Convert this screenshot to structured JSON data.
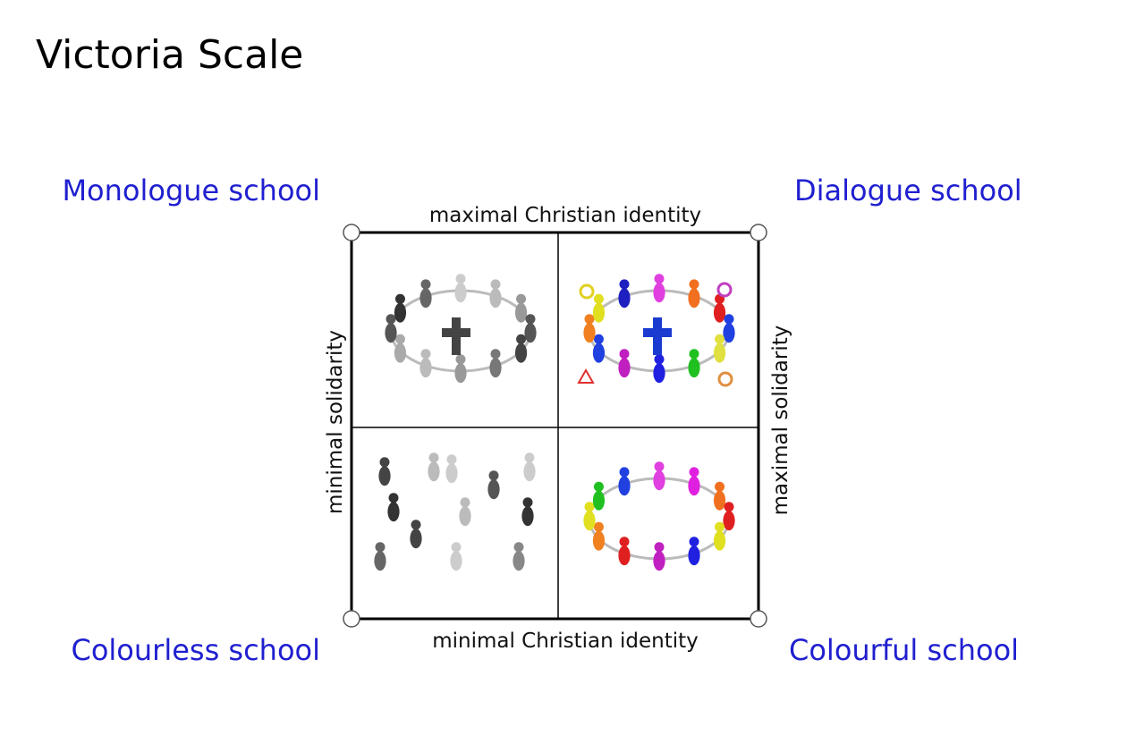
{
  "title": "Victoria Scale",
  "quadrants": {
    "top_left": "Monologue school",
    "top_right": "Dialogue school",
    "bottom_left": "Colourless school",
    "bottom_right": "Colourful school"
  },
  "axes": {
    "top": "maximal Christian identity",
    "bottom": "minimal Christian identity",
    "left": "minimal solidarity",
    "right": "maximal solidarity"
  }
}
